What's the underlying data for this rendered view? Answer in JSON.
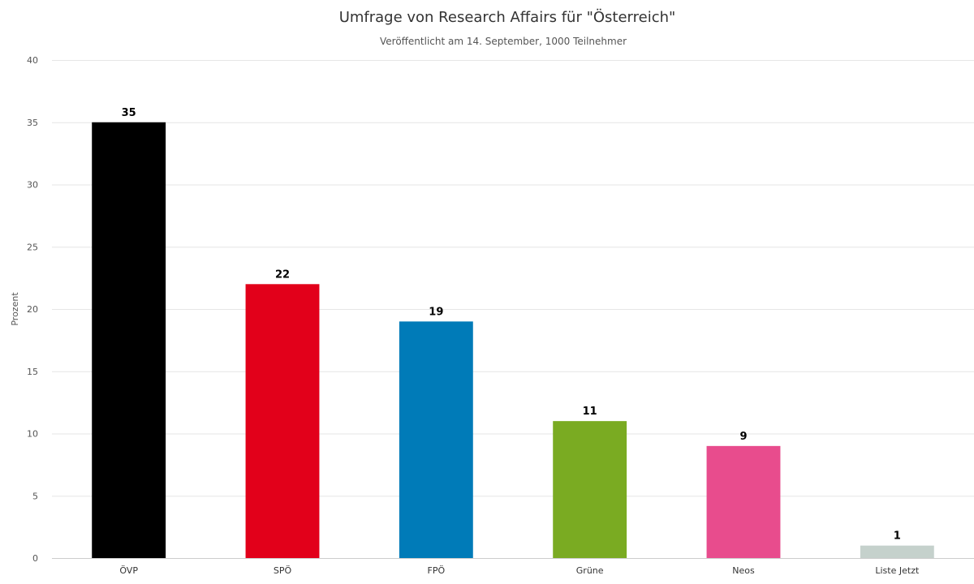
{
  "chart_data": {
    "type": "bar",
    "title": "Umfrage von Research Affairs für \"Österreich\"",
    "subtitle": "Veröffentlicht am 14. September, 1000 Teilnehmer",
    "ylabel": "Prozent",
    "xlabel": "",
    "ylim": [
      0,
      40
    ],
    "yticks": [
      "0",
      "5",
      "10",
      "15",
      "20",
      "25",
      "30",
      "35",
      "40"
    ],
    "categories": [
      "ÖVP",
      "SPÖ",
      "FPÖ",
      "Grüne",
      "Neos",
      "Liste Jetzt"
    ],
    "values": [
      35,
      22,
      19,
      11,
      9,
      1
    ],
    "colors": [
      "#000000",
      "#e2001a",
      "#007bb8",
      "#7aab22",
      "#e84c8d",
      "#c5d1cc"
    ],
    "grid": true,
    "legend": "none"
  }
}
